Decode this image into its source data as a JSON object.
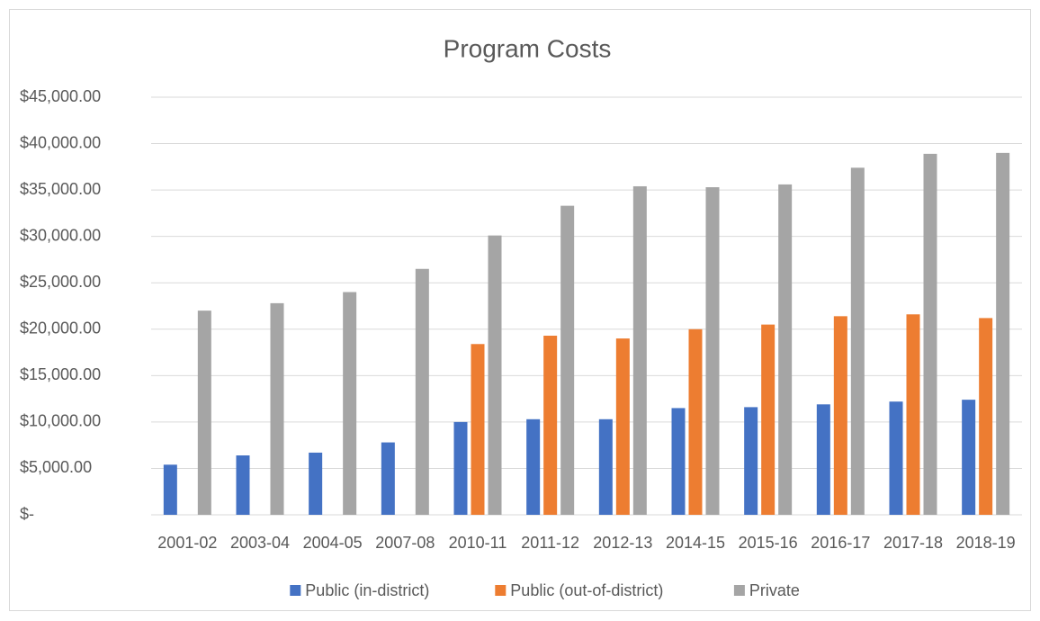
{
  "chart_data": {
    "type": "bar",
    "title": "Program Costs",
    "categories": [
      "2001-02",
      "2003-04",
      "2004-05",
      "2007-08",
      "2010-11",
      "2011-12",
      "2012-13",
      "2014-15",
      "2015-16",
      "2016-17",
      "2017-18",
      "2018-19"
    ],
    "series": [
      {
        "name": "Public (in-district)",
        "color": "#4472c4",
        "values": [
          5400,
          6400,
          6700,
          7800,
          10000,
          10300,
          10300,
          11500,
          11600,
          11900,
          12200,
          12400
        ]
      },
      {
        "name": "Public (out-of-district)",
        "color": "#ed7d31",
        "values": [
          null,
          null,
          null,
          null,
          18400,
          19300,
          19000,
          20000,
          20500,
          21400,
          21600,
          21200
        ]
      },
      {
        "name": "Private",
        "color": "#a5a5a5",
        "values": [
          22000,
          22800,
          24000,
          26500,
          30100,
          33300,
          35400,
          35300,
          35600,
          37400,
          38900,
          39000
        ]
      }
    ],
    "ylim": [
      0,
      45000
    ],
    "yticks": [
      {
        "value": 0,
        "label": "$-"
      },
      {
        "value": 5000,
        "label": "$5,000.00"
      },
      {
        "value": 10000,
        "label": "$10,000.00"
      },
      {
        "value": 15000,
        "label": "$15,000.00"
      },
      {
        "value": 20000,
        "label": "$20,000.00"
      },
      {
        "value": 25000,
        "label": "$25,000.00"
      },
      {
        "value": 30000,
        "label": "$30,000.00"
      },
      {
        "value": 35000,
        "label": "$35,000.00"
      },
      {
        "value": 40000,
        "label": "$40,000.00"
      },
      {
        "value": 45000,
        "label": "$45,000.00"
      }
    ],
    "grid": true,
    "legend": "bottom"
  }
}
